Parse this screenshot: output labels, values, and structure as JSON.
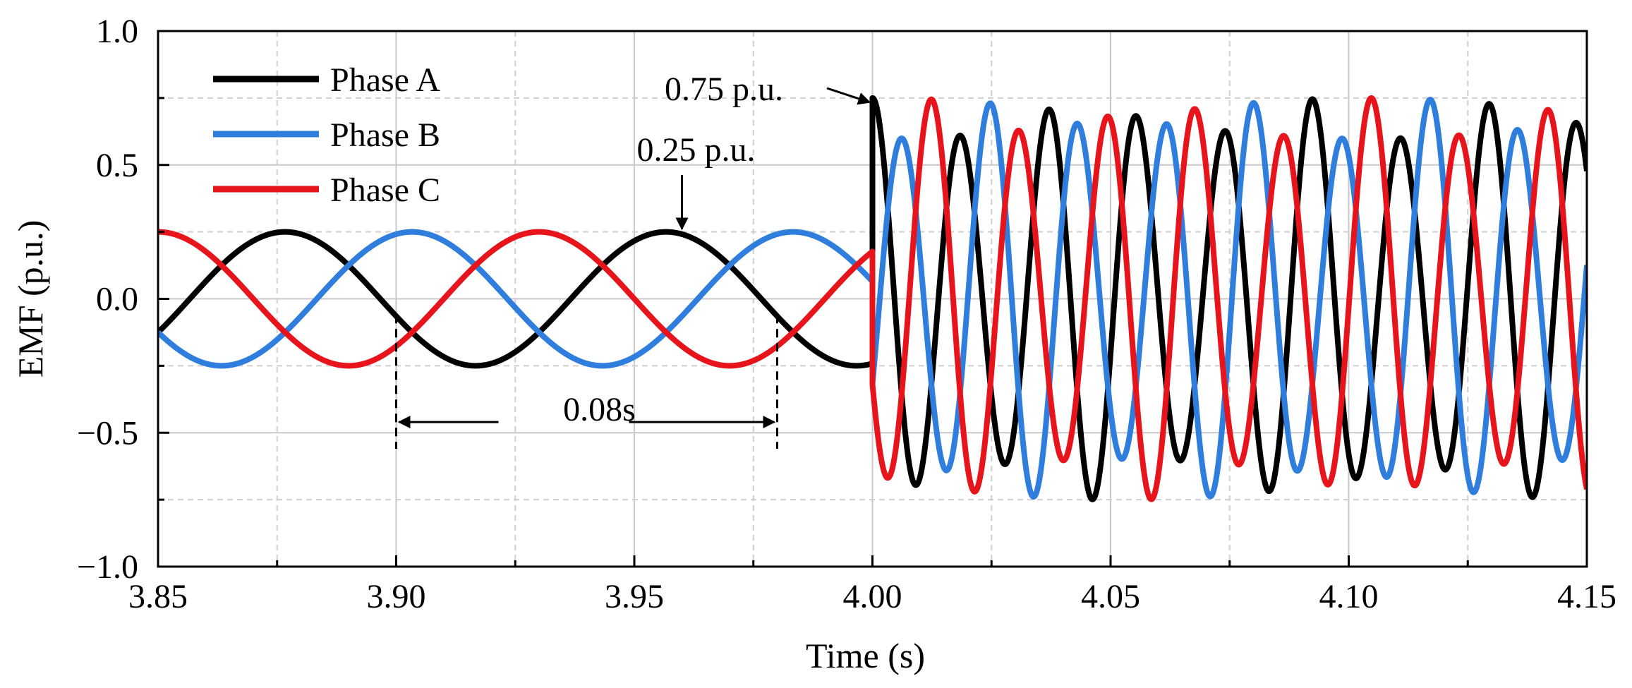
{
  "chart_data": {
    "type": "line",
    "title": "",
    "xlabel": "Time (s)",
    "ylabel": "EMF (p.u.)",
    "xlim": [
      3.85,
      4.15
    ],
    "ylim": [
      -1.0,
      1.0
    ],
    "x_ticks": [
      3.85,
      3.9,
      3.95,
      4.0,
      4.05,
      4.1,
      4.15
    ],
    "x_tick_labels": [
      "3.85",
      "3.90",
      "3.95",
      "4.00",
      "4.05",
      "4.10",
      "4.15"
    ],
    "y_ticks": [
      -1.0,
      -0.5,
      0.0,
      0.5,
      1.0
    ],
    "y_tick_labels": [
      "−1.0",
      "−0.5",
      "0.0",
      "0.5",
      "1.0"
    ],
    "grid": true,
    "legend_position": "top-left",
    "series": [
      {
        "name": "Phase A",
        "color": "#000000",
        "segments": [
          {
            "t_start": 3.85,
            "t_end": 4.0,
            "amplitude": 0.25,
            "frequency_hz": 12.5,
            "phase_deg": -30
          },
          {
            "t_start": 4.0,
            "t_end": 4.15,
            "amplitude": 0.75,
            "frequency_hz": 54.1,
            "phase_deg": 90
          }
        ]
      },
      {
        "name": "Phase B",
        "color": "#2f7ddd",
        "segments": [
          {
            "t_start": 3.85,
            "t_end": 4.0,
            "amplitude": 0.25,
            "frequency_hz": 12.5,
            "phase_deg": -150
          },
          {
            "t_start": 4.0,
            "t_end": 4.15,
            "amplitude": 0.75,
            "frequency_hz": 54.1,
            "phase_deg": -30
          }
        ]
      },
      {
        "name": "Phase C",
        "color": "#e8141c",
        "segments": [
          {
            "t_start": 3.85,
            "t_end": 4.0,
            "amplitude": 0.25,
            "frequency_hz": 12.5,
            "phase_deg": 90
          },
          {
            "t_start": 4.0,
            "t_end": 4.15,
            "amplitude": 0.75,
            "frequency_hz": 54.1,
            "phase_deg": -150
          }
        ]
      }
    ],
    "beat": {
      "modulation_depth": 0.45,
      "period_s": 0.045
    },
    "annotations": [
      {
        "text": "0.75 p.u.",
        "x": 4.0,
        "y": 0.75
      },
      {
        "text": "0.25 p.u.",
        "x": 3.96,
        "y": 0.25
      },
      {
        "text": "0.08s",
        "x_start": 3.9,
        "x_end": 3.98,
        "y": -0.46
      }
    ]
  }
}
